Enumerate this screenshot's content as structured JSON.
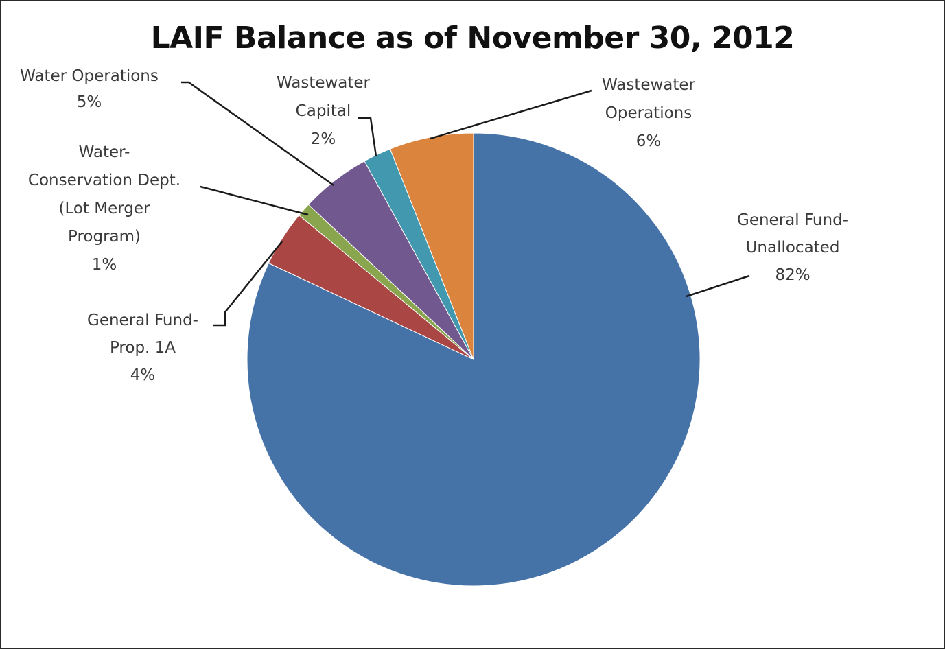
{
  "chart_data": {
    "type": "pie",
    "title": "LAIF Balance as of November 30, 2012",
    "legend": "none",
    "start_angle_deg": 0,
    "direction": "clockwise",
    "slices": [
      {
        "label": "General Fund-Unallocated",
        "label_lines": [
          "General Fund-",
          "Unallocated"
        ],
        "value": 82,
        "value_label": "82%",
        "color": "#4572a7"
      },
      {
        "label": "General Fund-Prop. 1A",
        "label_lines": [
          "General Fund-",
          "Prop. 1A"
        ],
        "value": 4,
        "value_label": "4%",
        "color": "#aa4643"
      },
      {
        "label": "Water-Conservation Dept. (Lot Merger Program)",
        "label_lines": [
          "Water-",
          "Conservation Dept.",
          "(Lot Merger",
          "Program)"
        ],
        "value": 1,
        "value_label": "1%",
        "color": "#89a54e"
      },
      {
        "label": "Water Operations",
        "label_lines": [
          "Water Operations"
        ],
        "value": 5,
        "value_label": "5%",
        "color": "#71588f"
      },
      {
        "label": "Wastewater Capital",
        "label_lines": [
          "Wastewater",
          "Capital"
        ],
        "value": 2,
        "value_label": "2%",
        "color": "#4198af"
      },
      {
        "label": "Wastewater Operations",
        "label_lines": [
          "Wastewater",
          "Operations"
        ],
        "value": 6,
        "value_label": "6%",
        "color": "#db843d"
      }
    ]
  }
}
